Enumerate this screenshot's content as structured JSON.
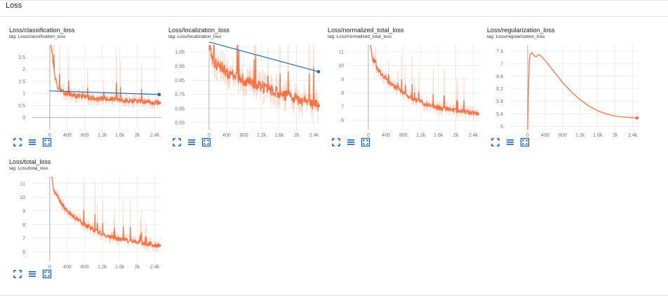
{
  "section": {
    "title": "Loss"
  },
  "colors": {
    "smoothed": "#ff7043",
    "raw": "#ffccbc",
    "outlier": "#1f6fad",
    "icon": "#1565c0",
    "grid": "#e4e4e4"
  },
  "icons": [
    "fit-domain-icon",
    "toggle-log-scale-icon",
    "expand-chart-icon"
  ],
  "chart_data": [
    {
      "title": "Loss/classification_loss",
      "tag": "tag: Loss/classification_loss",
      "type": "line",
      "xlim": [
        -400,
        2550
      ],
      "ylim": [
        -0.5,
        3.0
      ],
      "x_ticks": [
        0,
        400,
        800,
        1200,
        1600,
        2000,
        2400
      ],
      "x_tick_labels": [
        "0",
        "400",
        "800",
        "1.2k",
        "1.6k",
        "2k",
        "2.4k"
      ],
      "y_ticks": [
        0,
        0.5,
        1,
        1.5,
        2,
        2.5
      ],
      "y_tick_labels": [
        "0",
        "0.5",
        "1",
        "1.5",
        "2",
        "2.5"
      ],
      "series": [
        {
          "x": [
            0,
            20,
            60,
            100,
            130,
            200,
            300,
            400,
            500,
            600,
            800,
            1000,
            1200,
            1400,
            1600,
            1800,
            2000,
            2200,
            2400,
            2500
          ],
          "y": [
            6,
            3.2,
            2.5,
            2.0,
            1.6,
            1.2,
            1.05,
            1.0,
            0.95,
            0.9,
            0.85,
            0.8,
            0.78,
            0.75,
            0.72,
            0.7,
            0.68,
            0.66,
            0.62,
            0.6
          ]
        }
      ],
      "outlier_line": {
        "x": [
          0,
          2500
        ],
        "y": [
          1.1,
          0.95
        ]
      }
    },
    {
      "title": "Loss/localization_loss",
      "tag": "tag: Loss/localization_loss",
      "type": "line",
      "xlim": [
        -400,
        2550
      ],
      "ylim": [
        0.5,
        1.1
      ],
      "x_ticks": [
        0,
        400,
        800,
        1200,
        1600,
        2000,
        2400
      ],
      "x_tick_labels": [
        "0",
        "400",
        "800",
        "1.2k",
        "1.6k",
        "2k",
        "2.4k"
      ],
      "y_ticks": [
        0.55,
        0.65,
        0.75,
        0.85,
        0.95,
        1.05
      ],
      "y_tick_labels": [
        "0.55",
        "0.65",
        "0.75",
        "0.85",
        "0.95",
        "1.05"
      ],
      "series": [
        {
          "x": [
            0,
            50,
            100,
            200,
            300,
            400,
            600,
            800,
            1000,
            1200,
            1400,
            1600,
            1800,
            2000,
            2200,
            2400,
            2500
          ],
          "y": [
            1.1,
            1.05,
            0.98,
            0.96,
            0.94,
            0.9,
            0.88,
            0.85,
            0.82,
            0.8,
            0.78,
            0.76,
            0.74,
            0.72,
            0.7,
            0.68,
            0.67
          ]
        }
      ],
      "outlier_line": {
        "x": [
          0,
          2500
        ],
        "y": [
          1.12,
          0.91
        ]
      }
    },
    {
      "title": "Loss/normalized_total_loss",
      "tag": "tag: Loss/normalized_total_loss",
      "type": "line",
      "xlim": [
        -400,
        2550
      ],
      "ylim": [
        5.3,
        11.5
      ],
      "x_ticks": [
        0,
        400,
        800,
        1200,
        1600,
        2000,
        2400
      ],
      "x_tick_labels": [
        "0",
        "400",
        "800",
        "1.2k",
        "1.6k",
        "2k",
        "2.4k"
      ],
      "y_ticks": [
        6,
        7,
        8,
        9,
        10,
        11
      ],
      "y_tick_labels": [
        "6",
        "7",
        "8",
        "9",
        "10",
        "11"
      ],
      "series": [
        {
          "x": [
            0,
            50,
            100,
            200,
            300,
            400,
            600,
            800,
            1000,
            1200,
            1400,
            1600,
            1800,
            2000,
            2200,
            2400,
            2500
          ],
          "y": [
            12,
            11.5,
            10.5,
            9.8,
            9.4,
            9.0,
            8.4,
            8.0,
            7.6,
            7.3,
            7.1,
            6.9,
            6.8,
            6.7,
            6.6,
            6.5,
            6.45
          ]
        }
      ]
    },
    {
      "title": "Loss/regularization_loss",
      "tag": "tag: Loss/regularization_loss",
      "type": "line",
      "xlim": [
        -400,
        2550
      ],
      "ylim": [
        4.9,
        7.6
      ],
      "x_ticks": [
        0,
        400,
        800,
        1200,
        1600,
        2000,
        2400
      ],
      "x_tick_labels": [
        "0",
        "400",
        "800",
        "1.2k",
        "1.6k",
        "2k",
        "2.4k"
      ],
      "y_ticks": [
        5,
        5.4,
        5.8,
        6.2,
        6.6,
        7,
        7.4
      ],
      "y_tick_labels": [
        "5",
        "5.4",
        "5.8",
        "6.2",
        "6.6",
        "7",
        "7.4"
      ],
      "series": [
        {
          "x": [
            0,
            20,
            40,
            60,
            100,
            150,
            200,
            250,
            300,
            400,
            600,
            800,
            1000,
            1200,
            1400,
            1600,
            1800,
            2000,
            2200,
            2400,
            2500
          ],
          "y": [
            4.9,
            6.2,
            7.1,
            7.3,
            7.35,
            7.25,
            7.22,
            7.3,
            7.25,
            7.1,
            6.75,
            6.4,
            6.1,
            5.85,
            5.65,
            5.5,
            5.4,
            5.33,
            5.3,
            5.28,
            5.27
          ]
        }
      ]
    },
    {
      "title": "Loss/total_loss",
      "tag": "tag: Loss/total_loss",
      "type": "line",
      "xlim": [
        -400,
        2550
      ],
      "ylim": [
        5.3,
        11.5
      ],
      "x_ticks": [
        0,
        400,
        800,
        1200,
        1600,
        2000,
        2400
      ],
      "x_tick_labels": [
        "0",
        "400",
        "800",
        "1.2k",
        "1.6k",
        "2k",
        "2.4k"
      ],
      "y_ticks": [
        6,
        7,
        8,
        9,
        10,
        11
      ],
      "y_tick_labels": [
        "6",
        "7",
        "8",
        "9",
        "10",
        "11"
      ],
      "series": [
        {
          "x": [
            0,
            50,
            100,
            200,
            300,
            400,
            600,
            800,
            1000,
            1200,
            1400,
            1600,
            1800,
            2000,
            2200,
            2400,
            2500
          ],
          "y": [
            12,
            11.5,
            10.5,
            9.8,
            9.4,
            9.0,
            8.4,
            8.0,
            7.6,
            7.3,
            7.1,
            6.9,
            6.8,
            6.7,
            6.6,
            6.5,
            6.45
          ]
        }
      ]
    }
  ]
}
